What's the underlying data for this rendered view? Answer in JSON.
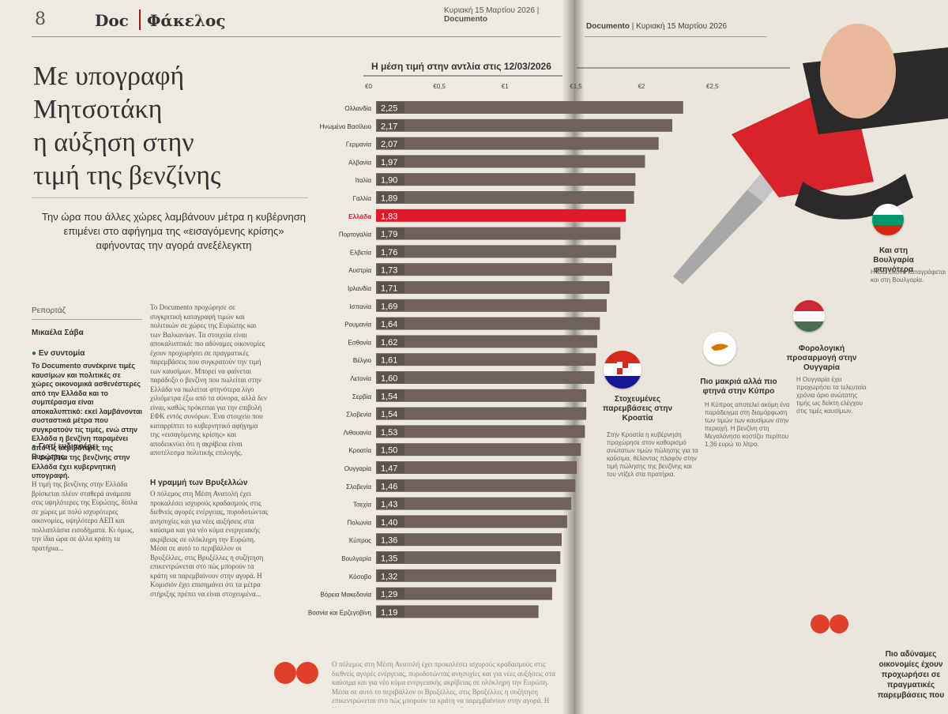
{
  "header": {
    "page_number": "8",
    "brand": "Doc",
    "section": "Φάκελος",
    "date_left": "Κυριακή 15 Μαρτίου 2026",
    "brand_right": "Documento",
    "date_right": "Κυριακή 15 Μαρτίου 2026"
  },
  "article": {
    "headline": "Με υπογραφή\nΜητσοτάκη\nη αύξηση στην\nτιμή της βενζίνης",
    "subhead": "Την ώρα που άλλες χώρες λαμβάνουν μέτρα η κυβέρνηση επιμένει στο αφήγημα της «εισαγόμενης κρίσης» αφήνοντας την αγορά ανεξέλεγκτη",
    "byline_label": "Ρεπορτάζ",
    "byline_name": "Μικαέλα Σάβα",
    "brief_title": "Εν συντομία",
    "brief_text": "Το Documento συνέκρινε τιμές καυσίμων και πολιτικές σε χώρες οικονομικά ασθενέστερες από την Ελλάδα και το συμπέρασμα είναι αποκαλυπτικό: εκεί λαμβάνονται συσταστικά μέτρα που συγκρατούν τις τιμές, ενώ στην Ελλάδα η βενζίνη παραμένει από τις ακριβότερες της Ευρώπης.",
    "why_title": "Γιατί ενδιαφέρει",
    "why_text": "Η ακρίβεια της βενζίνης στην Ελλάδα έχει κυβερνητική υπογραφή.",
    "col1_text": "Η τιμή της βενζίνης στην Ελλάδα βρίσκεται πλέον σταθερά ανάμεσα στις υψηλότερες της Ευρώπης, δίπλα σε χώρες με πολύ ισχυρότερες οικονομίες, υψηλότερο ΑΕΠ και πολλαπλάσια εισοδήματα. Κι όμως, την ίδια ώρα σε άλλα κράτη τα πρατήρια...",
    "col2_text": "Το Documento προχώρησε σε συγκριτική καταγραφή τιμών και πολιτικών σε χώρες της Ευρώπης και των Βαλκανίων. Τα στοιχεία είναι αποκαλυπτικά: πιο αδύναμες οικονομίες έχουν προχωρήσει σε πραγματικές παρεμβάσεις που συγκρατούν την τιμή των καυσίμων. Μπορεί να φαίνεται παράδοξο ο βενζίνη που πωλείται στην Ελλάδα να πωλείται φτηνότερα λίγο χιλιόμετρα έξω από τα σύνορα, αλλά δεν είναι, καθώς πρόκειται για την επιβολή ΕΦΚ εντός συνόρων. Ένα στοιχείο που καταρρίπτει το κυβερνητικό αφήγημα της «εισαγόμενης κρίσης» και αποδεικνύει ότι η ακρίβεια είναι αποτέλεσμα πολιτικής επιλογής.",
    "section_title": "Η γραμμή των Βρυξελλών",
    "col2b_text": "Ο πόλεμος στη Μέση Ανατολή έχει προκαλέσει ισχυρούς κραδασμούς στις διεθνείς αγορές ενέργειας, πυροδοτώντας ανησυχίες και για νέες αυξήσεις στα καύσιμα και για νέο κύμα ενεργειακής ακρίβειας σε ολόκληρη την Ευρώπη. Μέσα σε αυτό το περιβάλλον οι Βρυξέλλες, στις Βρυξέλλες η συζήτηση επικεντρώνεται στο πώς μπορούν τα κράτη να παρεμβαίνουν στην αγορά. Η Κομισιόν έχει επισημάνει ότι τα μέτρα στήριξης πρέπει να είναι στοχευμένα..."
  },
  "chart_data": {
    "type": "bar",
    "title": "Η μέση τιμή στην αντλία στις 12/03/2026",
    "tick_labels": [
      "€0",
      "€0,5",
      "€1",
      "€1,5",
      "€2",
      "€2,5"
    ],
    "xlim": [
      0,
      2.5
    ],
    "highlight": "Ελλάδα",
    "categories": [
      "Ολλανδία",
      "Ηνωμένο Βασίλειο",
      "Γερμανία",
      "Αλβανία",
      "Ιταλία",
      "Γαλλία",
      "Ελλάδα",
      "Πορτογαλία",
      "Ελβετία",
      "Αυστρία",
      "Ιρλανδία",
      "Ισπανία",
      "Ρουμανία",
      "Εσθονία",
      "Βέλγιο",
      "Λετονία",
      "Σερβία",
      "Σλοβενία",
      "Λιθουανία",
      "Κροατία",
      "Ουγγαρία",
      "Σλοβενία",
      "Τσεχία",
      "Πολωνία",
      "Κύπρος",
      "Βουλγαρία",
      "Κόσοβο",
      "Βόρεια Μακεδονία",
      "Βοσνία και Ερζεγοβίνη"
    ],
    "values": [
      2.25,
      2.17,
      2.07,
      1.97,
      1.9,
      1.89,
      1.83,
      1.79,
      1.76,
      1.73,
      1.71,
      1.69,
      1.64,
      1.62,
      1.61,
      1.6,
      1.54,
      1.54,
      1.53,
      1.5,
      1.47,
      1.46,
      1.43,
      1.4,
      1.36,
      1.35,
      1.32,
      1.29,
      1.19
    ],
    "value_labels": [
      "2,25",
      "2,17",
      "2,07",
      "1,97",
      "1,90",
      "1,89",
      "1,83",
      "1,79",
      "1,76",
      "1,73",
      "1,71",
      "1,69",
      "1,64",
      "1,62",
      "1,61",
      "1,60",
      "1,54",
      "1,54",
      "1,53",
      "1,50",
      "1,47",
      "1,46",
      "1,43",
      "1,40",
      "1,36",
      "1,35",
      "1,32",
      "1,29",
      "1,19"
    ],
    "colors": {
      "bar": "#6e625a",
      "highlight": "#e0182a",
      "label_bg": "#6e625a",
      "label_text": "#ffffff"
    }
  },
  "cards": [
    {
      "title": "Στοχευμένες παρεμβάσεις στην Κροατία",
      "flag": "croatia",
      "text": "Στην Κροατία η κυβέρνηση προχώρησε στον καθορισμό ανώτατων τιμών πώλησης για τα καύσιμα, θέλοντας πλαφόν στην τιμή πώλησης της βενζίνης και του ντίζελ στα πρατήρια."
    },
    {
      "title": "Πιο μακριά αλλά πιο φτηνά στην Κύπρο",
      "flag": "cyprus",
      "text": "Η Κύπρος αποτελεί ακόμη ένα παράδειγμα στη διαμόρφωση των τιμών των καυσίμων στην περιοχή. Η βενζίνη στη Μεγαλόνησο κοστίζει περίπου 1,36 ευρώ το λίτρο."
    },
    {
      "title": "Φορολογική προσαρμογή στην Ουγγαρία",
      "flag": "hungary",
      "text": "Η Ουγγαρία έχει προχωρήσει τα τελευταία χρόνια όριο ανώτατης τιμής ως δείκτη ελέγχου στις τιμές καυσίμων."
    },
    {
      "title": "Και στη Βουλγαρία φτηνότερα",
      "flag": "bulgaria",
      "text": "Η ίδια εικόνα καταγράφεται και στη Βουλγαρία."
    }
  ],
  "quote": "Πιο αδύναμες οικονομίες έχουν προχωρήσει σε πραγματικές παρεμβάσεις που"
}
